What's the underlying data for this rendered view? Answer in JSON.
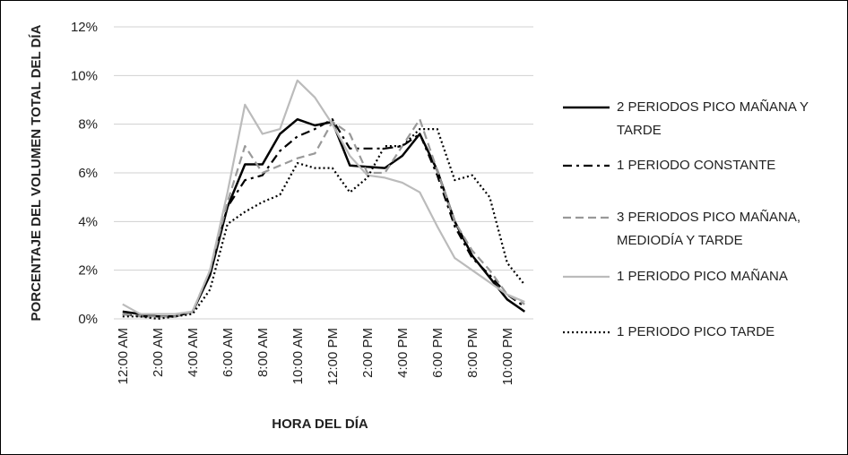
{
  "chart_data": {
    "type": "line",
    "x_label": "HORA DEL DÍA",
    "y_label": "PORCENTAJE DEL VOLUMEN TOTAL DEL DÍA",
    "categories": [
      "12:00 AM",
      null,
      "2:00 AM",
      null,
      "4:00 AM",
      null,
      "6:00 AM",
      null,
      "8:00 AM",
      null,
      "10:00 AM",
      null,
      "12:00 PM",
      null,
      "2:00 PM",
      null,
      "4:00 PM",
      null,
      "6:00 PM",
      null,
      "8:00 PM",
      null,
      "10:00 PM",
      null
    ],
    "ylim": [
      0,
      12
    ],
    "yticks": [
      {
        "value": 0,
        "label": "0%"
      },
      {
        "value": 2,
        "label": "2%"
      },
      {
        "value": 4,
        "label": "4%"
      },
      {
        "value": 6,
        "label": "6%"
      },
      {
        "value": 8,
        "label": "8%"
      },
      {
        "value": 10,
        "label": "10%"
      },
      {
        "value": 12,
        "label": "12%"
      }
    ],
    "grid": true,
    "legend": "right",
    "series": [
      {
        "name": "2 PERIODOS PICO MAÑANA Y TARDE",
        "color": "#000000",
        "style": "solid",
        "values": [
          0.3,
          0.2,
          0.1,
          0.1,
          0.3,
          1.8,
          4.6,
          6.35,
          6.35,
          7.6,
          8.2,
          7.95,
          8.1,
          6.3,
          6.25,
          6.2,
          6.7,
          7.6,
          6.1,
          4.0,
          2.6,
          1.7,
          0.8,
          0.3
        ]
      },
      {
        "name": "1 PERIODO CONSTANTE",
        "color": "#000000",
        "style": "dashdot",
        "values": [
          0.2,
          0.1,
          0.1,
          0.1,
          0.3,
          1.9,
          4.6,
          5.7,
          5.9,
          6.9,
          7.5,
          7.8,
          8.2,
          7.0,
          7.0,
          7.0,
          7.1,
          7.6,
          5.9,
          3.8,
          2.5,
          1.8,
          1.0,
          0.5
        ]
      },
      {
        "name": "3 PERIODOS PICO MAÑANA, MEDIODÍA Y TARDE",
        "color": "#999999",
        "style": "dashed",
        "values": [
          0.2,
          0.1,
          0.1,
          0.1,
          0.3,
          2.0,
          4.8,
          7.1,
          6.0,
          6.3,
          6.6,
          6.8,
          8.1,
          7.6,
          6.0,
          6.0,
          7.1,
          8.2,
          6.1,
          4.0,
          2.8,
          2.0,
          1.0,
          0.6
        ]
      },
      {
        "name": "1 PERIODO PICO MAÑANA",
        "color": "#bbbbbb",
        "style": "solid",
        "values": [
          0.6,
          0.2,
          0.2,
          0.2,
          0.3,
          2.0,
          5.2,
          8.8,
          7.6,
          7.8,
          9.8,
          9.1,
          8.0,
          6.7,
          5.9,
          5.8,
          5.6,
          5.2,
          3.8,
          2.5,
          2.0,
          1.5,
          1.0,
          0.7
        ]
      },
      {
        "name": "1 PERIODO PICO TARDE",
        "color": "#000000",
        "style": "dotted",
        "values": [
          0.1,
          0.1,
          0.0,
          0.1,
          0.2,
          1.2,
          3.9,
          4.4,
          4.8,
          5.1,
          6.4,
          6.2,
          6.2,
          5.2,
          5.8,
          7.1,
          7.1,
          7.8,
          7.8,
          5.7,
          5.9,
          5.0,
          2.3,
          1.4
        ]
      }
    ]
  }
}
